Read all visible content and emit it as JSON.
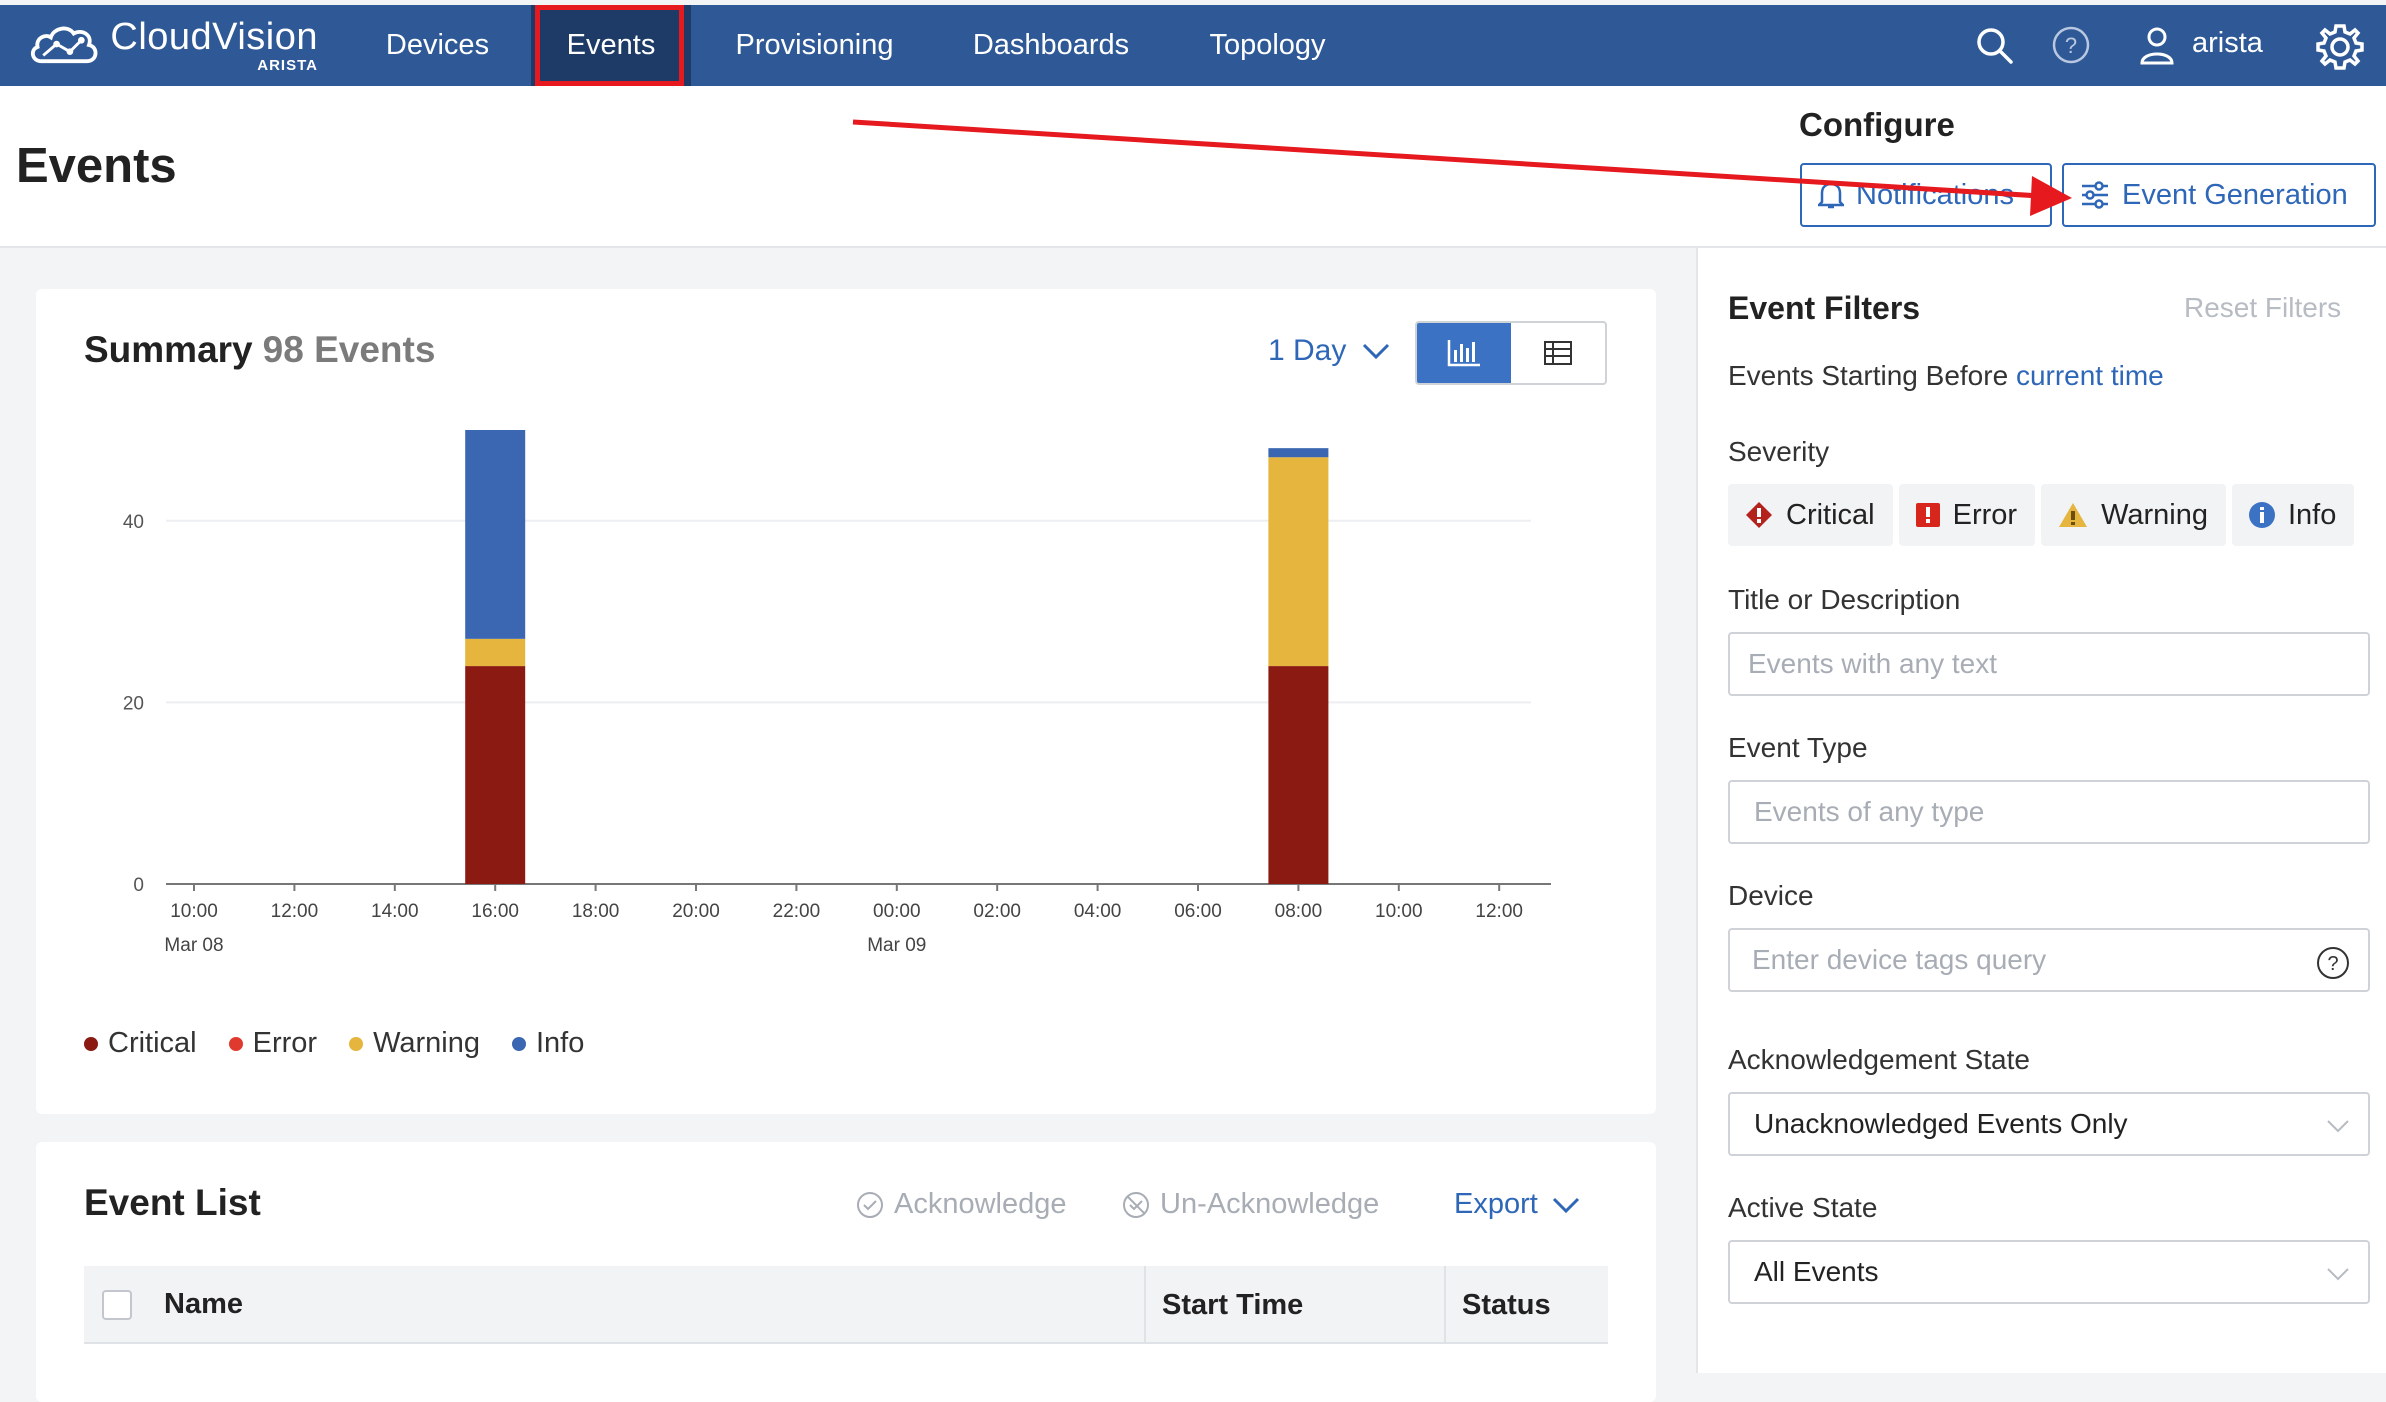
{
  "app": {
    "brand": "CloudVision",
    "brand_sub": "ARISTA"
  },
  "nav": {
    "items": [
      "Devices",
      "Events",
      "Provisioning",
      "Dashboards",
      "Topology"
    ],
    "active": "Events",
    "username": "arista"
  },
  "header": {
    "title": "Events",
    "configure_label": "Configure",
    "notifications_button": "Notifications",
    "event_generation_button": "Event Generation"
  },
  "summary": {
    "title": "Summary",
    "count_label": "98 Events",
    "range": "1 Day"
  },
  "chart_data": {
    "type": "bar",
    "stacked": true,
    "x_ticks": [
      "10:00",
      "12:00",
      "14:00",
      "16:00",
      "18:00",
      "20:00",
      "22:00",
      "00:00",
      "02:00",
      "04:00",
      "06:00",
      "08:00",
      "10:00",
      "12:00"
    ],
    "x_date_labels": [
      {
        "tick": "10:00",
        "date": "Mar 08"
      },
      {
        "tick": "00:00",
        "date": "Mar 09"
      }
    ],
    "y_ticks": [
      0,
      20,
      40
    ],
    "ylim": [
      0,
      50
    ],
    "categories": [
      "Mar 08 16:00",
      "Mar 09 08:00"
    ],
    "series": [
      {
        "name": "Critical",
        "color": "#8b1a13",
        "values": [
          24,
          24
        ]
      },
      {
        "name": "Error",
        "color": "#e03a2f",
        "values": [
          0,
          0
        ]
      },
      {
        "name": "Warning",
        "color": "#e5b53e",
        "values": [
          3,
          23
        ]
      },
      {
        "name": "Info",
        "color": "#3a66b2",
        "values": [
          23,
          1
        ]
      }
    ],
    "grid": true,
    "legend_position": "bottom-left"
  },
  "event_list": {
    "title": "Event List",
    "acknowledge": "Acknowledge",
    "unacknowledge": "Un-Acknowledge",
    "export": "Export",
    "columns": [
      "Name",
      "Start Time",
      "Status"
    ]
  },
  "filters": {
    "title": "Event Filters",
    "reset": "Reset Filters",
    "starting_before_prefix": "Events Starting Before",
    "starting_before_link": "current time",
    "severity_label": "Severity",
    "severities": [
      "Critical",
      "Error",
      "Warning",
      "Info"
    ],
    "title_desc_label": "Title or Description",
    "title_desc_placeholder": "Events with any text",
    "event_type_label": "Event Type",
    "event_type_placeholder": "Events of any type",
    "device_label": "Device",
    "device_placeholder": "Enter device tags query",
    "ack_state_label": "Acknowledgement State",
    "ack_state_value": "Unacknowledged Events Only",
    "active_state_label": "Active State",
    "active_state_value": "All Events"
  }
}
